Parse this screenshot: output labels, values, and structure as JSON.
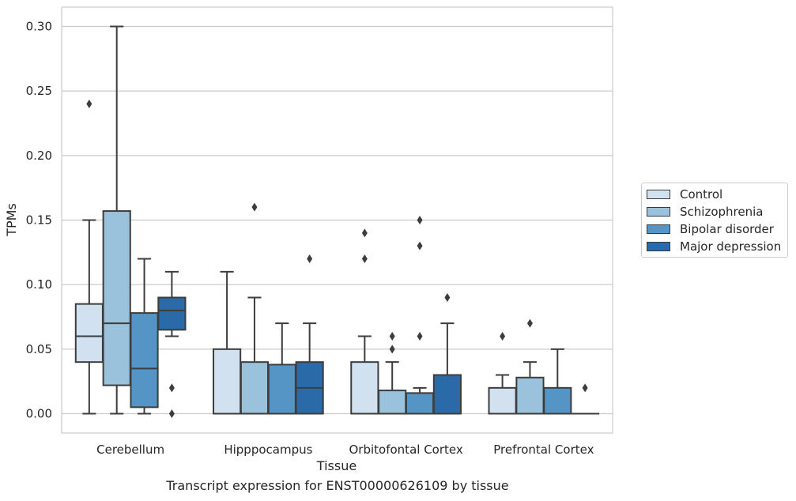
{
  "caption": "Transcript expression for ENST00000626109 by tissue",
  "chart_data": {
    "type": "box",
    "xlabel": "Tissue",
    "ylabel": "TPMs",
    "ylim": [
      -0.015,
      0.315
    ],
    "yticks": [
      "0.00",
      "0.05",
      "0.10",
      "0.15",
      "0.20",
      "0.25",
      "0.30"
    ],
    "grid": true,
    "legend_position": "right",
    "categories": [
      "Cerebellum",
      "Hipppocampus",
      "Orbitofontal Cortex",
      "Prefrontal Cortex"
    ],
    "series": [
      {
        "name": "Control",
        "color": "#d1e1f0",
        "boxes": [
          {
            "whislo": 0.0,
            "q1": 0.04,
            "median": 0.06,
            "q3": 0.085,
            "whishi": 0.15,
            "fliers": [
              0.24
            ]
          },
          {
            "whislo": 0.0,
            "q1": 0.0,
            "median": 0.0,
            "q3": 0.05,
            "whishi": 0.11,
            "fliers": []
          },
          {
            "whislo": 0.0,
            "q1": 0.0,
            "median": 0.0,
            "q3": 0.04,
            "whishi": 0.06,
            "fliers": [
              0.12,
              0.14
            ]
          },
          {
            "whislo": 0.0,
            "q1": 0.0,
            "median": 0.0,
            "q3": 0.02,
            "whishi": 0.03,
            "fliers": [
              0.06
            ]
          }
        ]
      },
      {
        "name": "Schizophrenia",
        "color": "#9ac2dc",
        "boxes": [
          {
            "whislo": 0.0,
            "q1": 0.022,
            "median": 0.07,
            "q3": 0.157,
            "whishi": 0.3,
            "fliers": []
          },
          {
            "whislo": 0.0,
            "q1": 0.0,
            "median": 0.0,
            "q3": 0.04,
            "whishi": 0.09,
            "fliers": [
              0.16
            ]
          },
          {
            "whislo": 0.0,
            "q1": 0.0,
            "median": 0.0,
            "q3": 0.018,
            "whishi": 0.04,
            "fliers": [
              0.05,
              0.06
            ]
          },
          {
            "whislo": 0.0,
            "q1": 0.0,
            "median": 0.0,
            "q3": 0.028,
            "whishi": 0.04,
            "fliers": [
              0.07
            ]
          }
        ]
      },
      {
        "name": "Bipolar disorder",
        "color": "#5495c6",
        "boxes": [
          {
            "whislo": 0.0,
            "q1": 0.005,
            "median": 0.035,
            "q3": 0.078,
            "whishi": 0.12,
            "fliers": []
          },
          {
            "whislo": 0.0,
            "q1": 0.0,
            "median": 0.0,
            "q3": 0.038,
            "whishi": 0.07,
            "fliers": []
          },
          {
            "whislo": 0.0,
            "q1": 0.0,
            "median": 0.0,
            "q3": 0.016,
            "whishi": 0.02,
            "fliers": [
              0.06,
              0.13,
              0.15
            ]
          },
          {
            "whislo": 0.0,
            "q1": 0.0,
            "median": 0.0,
            "q3": 0.02,
            "whishi": 0.05,
            "fliers": []
          }
        ]
      },
      {
        "name": "Major depression",
        "color": "#2b6aa8",
        "boxes": [
          {
            "whislo": 0.06,
            "q1": 0.065,
            "median": 0.08,
            "q3": 0.09,
            "whishi": 0.11,
            "fliers": [
              0.02,
              0.0
            ]
          },
          {
            "whislo": 0.0,
            "q1": 0.0,
            "median": 0.02,
            "q3": 0.04,
            "whishi": 0.07,
            "fliers": [
              0.12
            ]
          },
          {
            "whislo": 0.0,
            "q1": 0.0,
            "median": 0.0,
            "q3": 0.03,
            "whishi": 0.07,
            "fliers": [
              0.09
            ]
          },
          {
            "whislo": 0.0,
            "q1": 0.0,
            "median": 0.0,
            "q3": 0.0,
            "whishi": 0.0,
            "fliers": [
              0.02
            ]
          }
        ]
      }
    ]
  }
}
